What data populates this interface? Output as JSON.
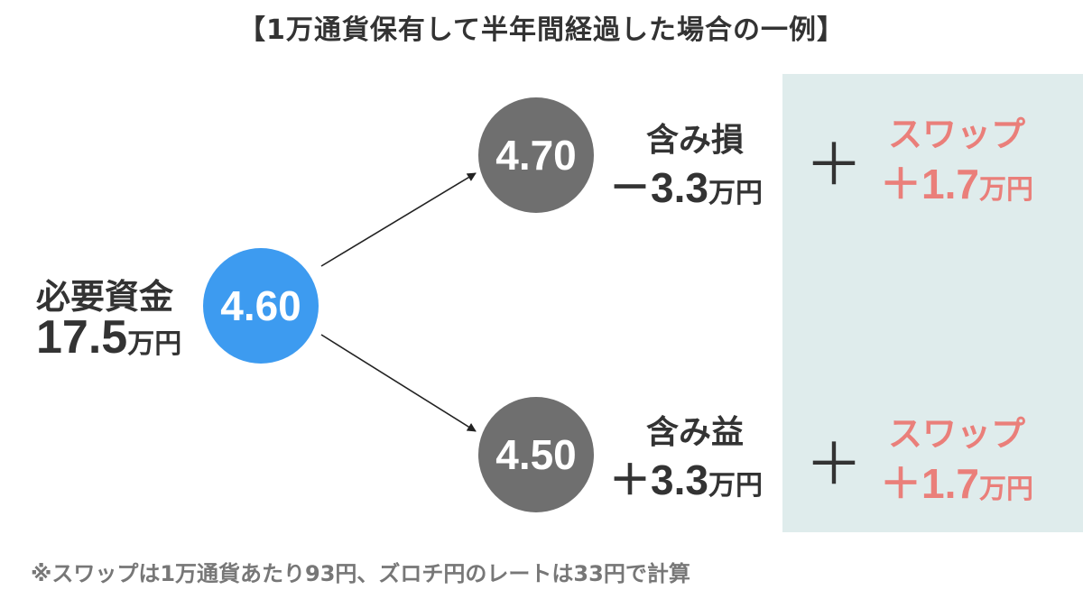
{
  "title": "【1万通貨保有して半年間経過した場合の一例】",
  "start": {
    "rate": "4.60",
    "fund_label": "必要資金",
    "fund_value": "17.5",
    "fund_unit": "万円"
  },
  "scenarios": [
    {
      "rate": "4.70",
      "pl_label": "含み損",
      "pl_value": "－3.3",
      "pl_unit": "万円",
      "plus": "＋",
      "swap_label": "スワップ",
      "swap_value": "＋1.7",
      "swap_unit": "万円"
    },
    {
      "rate": "4.50",
      "pl_label": "含み益",
      "pl_value": "＋3.3",
      "pl_unit": "万円",
      "plus": "＋",
      "swap_label": "スワップ",
      "swap_value": "＋1.7",
      "swap_unit": "万円"
    }
  ],
  "footnote": "※スワップは1万通貨あたり93円、ズロチ円のレートは33円で計算",
  "colors": {
    "start_circle": "#3d9bf0",
    "scenario_circle": "#6f6f6f",
    "swap_text": "#ea7f7a",
    "swap_panel": "#dfecec"
  }
}
